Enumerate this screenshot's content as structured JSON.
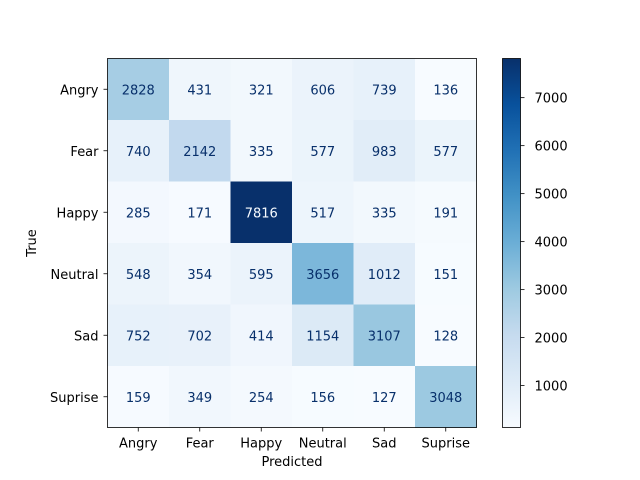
{
  "chart_data": {
    "type": "heatmap",
    "title": "",
    "xlabel": "Predicted",
    "ylabel": "True",
    "x_categories": [
      "Angry",
      "Fear",
      "Happy",
      "Neutral",
      "Sad",
      "Suprise"
    ],
    "y_categories": [
      "Angry",
      "Fear",
      "Happy",
      "Neutral",
      "Sad",
      "Suprise"
    ],
    "values": [
      [
        2828,
        431,
        321,
        606,
        739,
        136
      ],
      [
        740,
        2142,
        335,
        577,
        983,
        577
      ],
      [
        285,
        171,
        7816,
        517,
        335,
        191
      ],
      [
        548,
        354,
        595,
        3656,
        1012,
        151
      ],
      [
        752,
        702,
        414,
        1154,
        3107,
        128
      ],
      [
        159,
        349,
        254,
        156,
        127,
        3048
      ]
    ],
    "colormap": "Blues",
    "colorbar": {
      "range": [
        127,
        7816
      ],
      "ticks": [
        1000,
        2000,
        3000,
        4000,
        5000,
        6000,
        7000
      ]
    }
  },
  "colors": {
    "light_text": "#f7fbff",
    "dark_text": "#08306b",
    "blues_start": "#f7fbff",
    "blues_end": "#08306b"
  }
}
